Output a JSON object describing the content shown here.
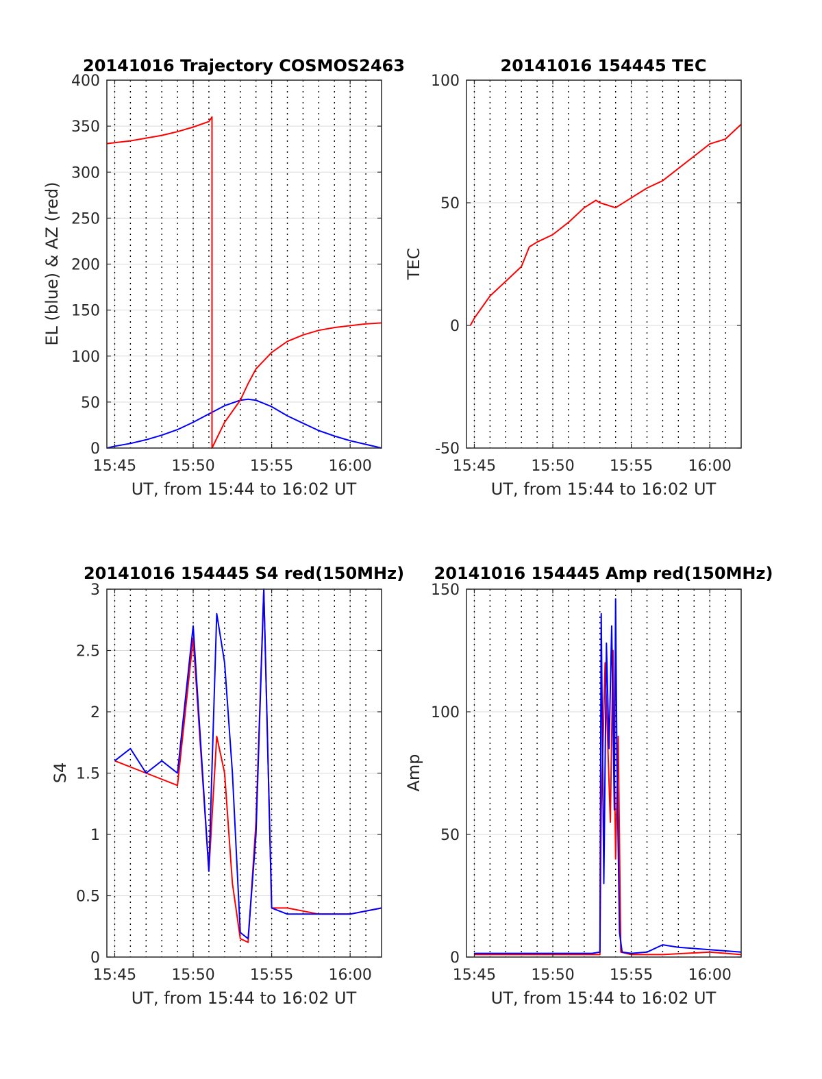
{
  "colors": {
    "el": "#0000ff",
    "az": "#ff0000",
    "tec": "#ff0000",
    "grid": "#d9d9d9",
    "dotted": "#000000"
  },
  "chart_data": [
    {
      "type": "line",
      "title": "20141016 Trajectory COSMOS2463",
      "xlabel": "UT, from 15:44 to 16:02 UT",
      "ylabel": "EL (blue) & AZ (red)",
      "xlim": [
        "15:44:30",
        "16:02:00"
      ],
      "ylim": [
        0,
        400
      ],
      "xticks": [
        "15:45",
        "15:50",
        "15:55",
        "16:00"
      ],
      "yticks": [
        "0",
        "50",
        "100",
        "150",
        "200",
        "250",
        "300",
        "350",
        "400"
      ],
      "grid": true,
      "series": [
        {
          "color": "blue",
          "x": [
            "15:44:30",
            "15:45",
            "15:46",
            "15:47",
            "15:48",
            "15:49",
            "15:50",
            "15:51",
            "15:52",
            "15:53",
            "15:53:30",
            "15:54",
            "15:55",
            "15:56",
            "15:57",
            "15:58",
            "15:59",
            "16:00",
            "16:01",
            "16:02"
          ],
          "y": [
            0,
            2,
            5,
            9,
            14,
            20,
            28,
            37,
            46,
            52,
            53,
            52,
            45,
            35,
            27,
            19,
            13,
            8,
            4,
            0
          ]
        },
        {
          "color": "red",
          "x": [
            "15:44:30",
            "15:45",
            "15:46",
            "15:47",
            "15:48",
            "15:49",
            "15:50",
            "15:51",
            "15:51:12",
            "15:51:12",
            "15:52",
            "15:53",
            "15:53:30",
            "15:54",
            "15:55",
            "15:56",
            "15:57",
            "15:58",
            "15:59",
            "16:00",
            "16:01",
            "16:02"
          ],
          "y": [
            331,
            332,
            334,
            337,
            340,
            344,
            349,
            355,
            360,
            0,
            28,
            52,
            70,
            86,
            104,
            116,
            123,
            128,
            131,
            133,
            135,
            136
          ]
        }
      ]
    },
    {
      "type": "line",
      "title": "20141016 154445 TEC",
      "xlabel": "UT, from 15:44 to 16:02 UT",
      "ylabel": "TEC",
      "xlim": [
        "15:44:30",
        "16:02:00"
      ],
      "ylim": [
        -50,
        100
      ],
      "xticks": [
        "15:45",
        "15:50",
        "15:55",
        "16:00"
      ],
      "yticks": [
        "-50",
        "0",
        "50",
        "100"
      ],
      "grid": true,
      "series": [
        {
          "color": "red",
          "x": [
            "15:44:45",
            "15:45",
            "15:46",
            "15:47",
            "15:48",
            "15:48:30",
            "15:49",
            "15:50",
            "15:51",
            "15:52",
            "15:52:45",
            "15:53",
            "15:54",
            "15:55",
            "15:56",
            "15:57",
            "15:58",
            "15:59",
            "16:00",
            "16:01",
            "16:02"
          ],
          "y": [
            0,
            3,
            12,
            18,
            24,
            32,
            34,
            37,
            42,
            48,
            51,
            50,
            48,
            52,
            56,
            59,
            64,
            69,
            74,
            76,
            82
          ]
        }
      ]
    },
    {
      "type": "line",
      "title": "20141016 154445 S4 red(150MHz)",
      "xlabel": "UT, from 15:44 to 16:02 UT",
      "ylabel": "S4",
      "xlim": [
        "15:44:30",
        "16:02:00"
      ],
      "ylim": [
        0,
        3
      ],
      "xticks": [
        "15:45",
        "15:50",
        "15:55",
        "16:00"
      ],
      "yticks": [
        "0",
        "0.5",
        "1",
        "1.5",
        "2",
        "2.5",
        "3"
      ],
      "grid": true,
      "series": [
        {
          "color": "red",
          "x": [
            "15:45",
            "15:47",
            "15:49",
            "15:50",
            "15:51",
            "15:51:30",
            "15:52",
            "15:52:30",
            "15:53",
            "15:53:30",
            "15:54",
            "15:54:30",
            "15:55",
            "15:56",
            "15:58",
            "16:00",
            "16:02"
          ],
          "y": [
            1.6,
            1.5,
            1.4,
            2.6,
            0.7,
            1.8,
            1.5,
            0.6,
            0.15,
            0.12,
            1.1,
            3,
            0.4,
            0.4,
            0.35,
            0.35,
            0.4
          ]
        },
        {
          "color": "blue",
          "x": [
            "15:45",
            "15:46",
            "15:47",
            "15:48",
            "15:49",
            "15:50",
            "15:51",
            "15:51:30",
            "15:52",
            "15:52:30",
            "15:53",
            "15:53:30",
            "15:54",
            "15:54:30",
            "15:55",
            "15:56",
            "15:58",
            "16:00",
            "16:02"
          ],
          "y": [
            1.6,
            1.7,
            1.5,
            1.6,
            1.5,
            2.7,
            0.7,
            2.8,
            2.4,
            1.5,
            0.2,
            0.15,
            1.0,
            3,
            0.4,
            0.35,
            0.35,
            0.35,
            0.4
          ]
        }
      ]
    },
    {
      "type": "line",
      "title": "20141016 154445 Amp red(150MHz)",
      "xlabel": "UT, from 15:44 to 16:02 UT",
      "ylabel": "Amp",
      "xlim": [
        "15:44:30",
        "16:02:00"
      ],
      "ylim": [
        0,
        150
      ],
      "xticks": [
        "15:45",
        "15:50",
        "15:55",
        "16:00"
      ],
      "yticks": [
        "0",
        "50",
        "100",
        "150"
      ],
      "grid": true,
      "series": [
        {
          "color": "red",
          "x": [
            "15:45",
            "15:50",
            "15:53",
            "15:53:05",
            "15:53:20",
            "15:53:40",
            "15:53:50",
            "15:54",
            "15:54:10",
            "15:54:20",
            "15:55",
            "15:57",
            "16:00",
            "16:02"
          ],
          "y": [
            1,
            1,
            1,
            60,
            120,
            55,
            125,
            40,
            90,
            2,
            1,
            1,
            2,
            1
          ]
        },
        {
          "color": "blue",
          "x": [
            "15:45",
            "15:50",
            "15:52:30",
            "15:53",
            "15:53:05",
            "15:53:15",
            "15:53:25",
            "15:53:35",
            "15:53:45",
            "15:53:55",
            "15:54",
            "15:54:05",
            "15:54:15",
            "15:54:25",
            "15:55",
            "15:56",
            "15:57",
            "15:58",
            "16:00",
            "16:02"
          ],
          "y": [
            1.5,
            1.5,
            1.5,
            2,
            140,
            30,
            128,
            85,
            135,
            60,
            146,
            80,
            10,
            2,
            1.5,
            2,
            5,
            4,
            3,
            2
          ]
        }
      ]
    }
  ]
}
